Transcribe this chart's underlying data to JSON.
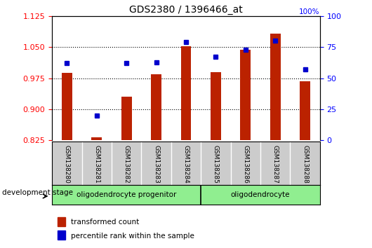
{
  "title": "GDS2380 / 1396466_at",
  "samples": [
    "GSM138280",
    "GSM138281",
    "GSM138282",
    "GSM138283",
    "GSM138284",
    "GSM138285",
    "GSM138286",
    "GSM138287",
    "GSM138288"
  ],
  "transformed_count": [
    0.988,
    0.832,
    0.93,
    0.984,
    1.052,
    0.99,
    1.043,
    1.083,
    0.968
  ],
  "percentile_rank": [
    62,
    20,
    62,
    63,
    79,
    67,
    73,
    80,
    57
  ],
  "ylim_left": [
    0.825,
    1.125
  ],
  "ylim_right": [
    0,
    100
  ],
  "yticks_left": [
    0.825,
    0.9,
    0.975,
    1.05,
    1.125
  ],
  "yticks_right": [
    0,
    25,
    50,
    75,
    100
  ],
  "bar_color": "#bb2200",
  "dot_color": "#0000cc",
  "group1_label": "oligodendrocyte progenitor",
  "group2_label": "oligodendrocyte",
  "group1_indices": [
    0,
    1,
    2,
    3,
    4
  ],
  "group2_indices": [
    5,
    6,
    7,
    8
  ],
  "stage_label": "development stage",
  "legend1": "transformed count",
  "legend2": "percentile rank within the sample",
  "bar_width": 0.35,
  "background_color": "#ffffff",
  "plot_bg": "#ffffff",
  "label_area_bg": "#cccccc",
  "group_bg": "#90ee90"
}
